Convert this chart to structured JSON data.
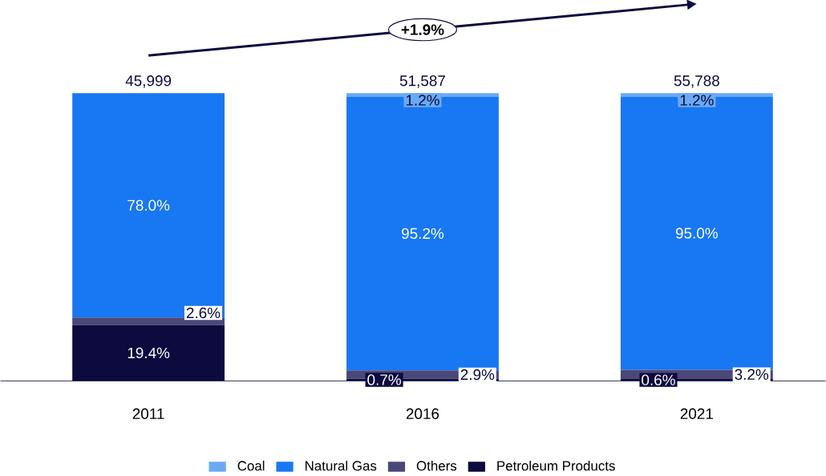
{
  "chart_data": {
    "type": "bar",
    "stacked": true,
    "categories": [
      "2011",
      "2016",
      "2021"
    ],
    "series": [
      {
        "name": "Petroleum Products",
        "color": "#0c0a3e",
        "values": [
          19.4,
          0.7,
          0.6
        ],
        "value_labels": [
          "19.4%",
          "0.7%",
          "0.6%"
        ]
      },
      {
        "name": "Others",
        "color": "#4a4878",
        "values": [
          2.6,
          2.9,
          3.2
        ],
        "value_labels": [
          "2.6%",
          "2.9%",
          "3.2%"
        ]
      },
      {
        "name": "Natural Gas",
        "color": "#1877f2",
        "values": [
          78.0,
          95.2,
          95.0
        ],
        "value_labels": [
          "78.0%",
          "95.2%",
          "95.0%"
        ]
      },
      {
        "name": "Coal",
        "color": "#6aaaf5",
        "values": [
          null,
          1.2,
          1.2
        ],
        "value_labels": [
          null,
          "1.2%",
          "1.2%"
        ]
      }
    ],
    "annotations": [
      "+1.9%",
      {
        "text": "45,999",
        "x": "2011",
        "y": 100
      },
      {
        "text": "51,587",
        "x": "2016",
        "y": 100
      },
      {
        "text": "55,788",
        "x": "2021",
        "y": 100
      }
    ],
    "legend": "bottom"
  }
}
